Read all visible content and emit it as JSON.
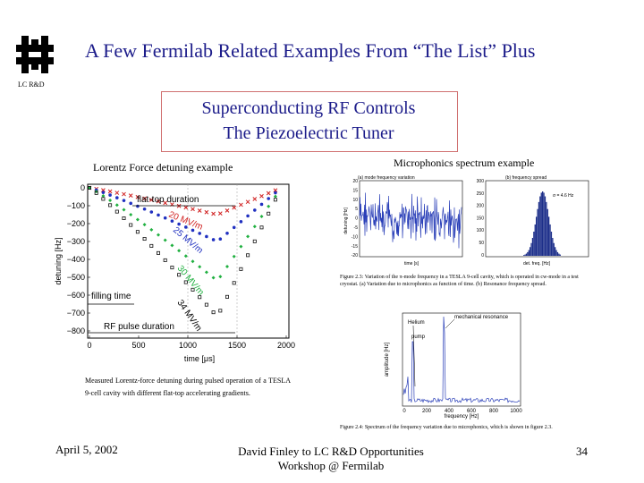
{
  "slide": {
    "title": "A Few Fermilab Related Examples From “The List” Plus",
    "org_tag": "LC R&D",
    "box_line1": "Superconducting RF Controls",
    "box_line2": "The Piezoelectric Tuner",
    "lorentz_caption": "Lorentz Force detuning example",
    "microphonics_caption": "Microphonics spectrum example",
    "left_figure_caption": "Measured Lorentz-force detuning during pulsed operation of a TESLA 9-cell cavity with different flat-top accelerating gradients.",
    "date": "April 5, 2002",
    "footer_line1": "David Finley to LC R&D Opportunities",
    "footer_line2": "Workshop @ Fermilab",
    "page_number": "34"
  },
  "lorentz_plot": {
    "ylabel": "detuning [Hz]",
    "xlabel": "time [μs]",
    "xticks": [
      "0",
      "500",
      "1000",
      "1500",
      "2000"
    ],
    "yticks": [
      "0",
      "−100",
      "−200",
      "−300",
      "−400",
      "−500",
      "−600",
      "−700",
      "−800"
    ],
    "annotations": {
      "flat_top": "flat-top duration",
      "filling": "filling time",
      "rf_pulse": "RF pulse duration",
      "g20": "20 MV/m",
      "g25": "25 MV/m",
      "g30": "30 MV/m",
      "g34": "34 MV/m"
    },
    "colors": {
      "g20": "#d02020",
      "g25": "#2030c0",
      "g30": "#20b040",
      "g34": "#111111"
    }
  },
  "micro_top": {
    "left_title": "(a) mode frequency variation",
    "right_title": "(b) frequency spread",
    "left_ylabel": "detuning [Hz]",
    "left_xlabel": "time [s]",
    "right_xlabel": "det. freq. [Hz]",
    "left_yticks": [
      "20",
      "15",
      "10",
      "5",
      "0",
      "-5",
      "-10",
      "-15",
      "-20"
    ],
    "right_yticks": [
      "300",
      "250",
      "200",
      "150",
      "100",
      "50",
      "0"
    ],
    "sigma_label": "σ = 4.6 Hz",
    "caption": "Figure 2.3: Variation of the π-mode frequency in a TESLA 9-cell cavity, which is operated in cw-mode in a test cryostat. (a) Variation due to microphonics as function of time. (b) Resonance frequency spread."
  },
  "micro_bottom": {
    "ylabel": "amplitude [Hz]",
    "xlabel": "frequency [Hz]",
    "xticks": [
      "0",
      "200",
      "400",
      "600",
      "800",
      "1000"
    ],
    "label_helium": "Helium",
    "label_pump": "pump",
    "label_mech": "mechanical resonance",
    "caption": "Figure 2.4: Spectrum of the frequency variation due to microphonics, which is shown in figure 2.3."
  }
}
